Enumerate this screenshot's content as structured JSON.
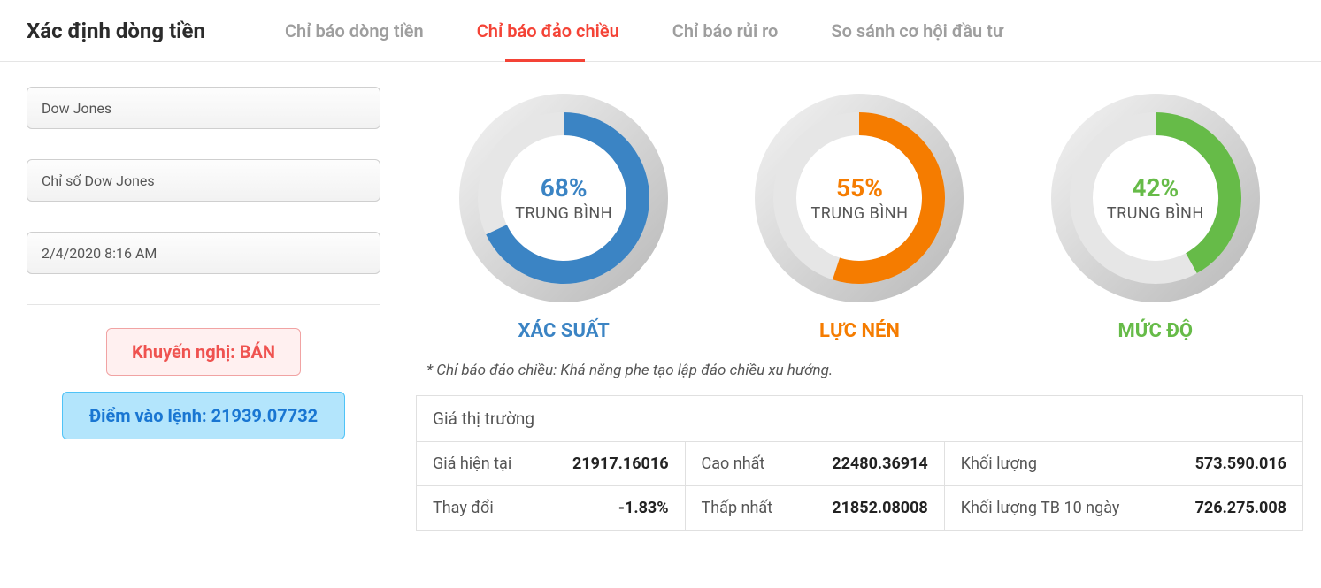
{
  "header": {
    "title": "Xác định dòng tiền",
    "tabs": [
      {
        "label": "Chỉ báo dòng tiền",
        "active": false
      },
      {
        "label": "Chỉ báo đảo chiều",
        "active": true
      },
      {
        "label": "Chỉ báo rủi ro",
        "active": false
      },
      {
        "label": "So sánh cơ hội đầu tư",
        "active": false
      }
    ]
  },
  "sidebar": {
    "symbol_field": "Dow Jones",
    "index_field": "Chỉ số Dow Jones",
    "datetime_field": "2/4/2020 8:16 AM",
    "recommendation_label": "Khuyến nghị: BÁN",
    "entry_label": "Điểm vào lệnh: 21939.07732"
  },
  "gauges": [
    {
      "percent": 68,
      "percent_text": "68%",
      "status": "TRUNG BÌNH",
      "label": "XÁC SUẤT",
      "color": "#3b84c4",
      "track_color": "#e6e6e6"
    },
    {
      "percent": 55,
      "percent_text": "55%",
      "status": "TRUNG BÌNH",
      "label": "LỰC NÉN",
      "color": "#f57c00",
      "track_color": "#e6e6e6"
    },
    {
      "percent": 42,
      "percent_text": "42%",
      "status": "TRUNG BÌNH",
      "label": "MỨC ĐỘ",
      "color": "#66bb48",
      "track_color": "#e6e6e6"
    }
  ],
  "gauge_style": {
    "size": 240,
    "ring_outer_r": 118,
    "ring_inner_r": 96,
    "arc_r": 84,
    "arc_stroke": 26,
    "inner_fill": "#ffffff",
    "bezel_light": "#f4f4f4",
    "bezel_dark": "#b8b8b8"
  },
  "note": "* Chỉ báo đảo chiều: Khả năng phe tạo lập đảo chiều xu hướng.",
  "market": {
    "header": "Giá thị trường",
    "rows": [
      [
        {
          "label": "Giá hiện tại",
          "value": "21917.16016"
        },
        {
          "label": "Cao nhất",
          "value": "22480.36914"
        },
        {
          "label": "Khối lượng",
          "value": "573.590.016"
        }
      ],
      [
        {
          "label": "Thay đổi",
          "value": "-1.83%"
        },
        {
          "label": "Thấp nhất",
          "value": "21852.08008"
        },
        {
          "label": "Khối lượng TB 10 ngày",
          "value": "726.275.008"
        }
      ]
    ]
  },
  "colors": {
    "active_tab": "#f44336",
    "rec_text": "#ef5350",
    "rec_bg": "#fff0f0",
    "entry_text": "#1976d2",
    "entry_bg": "#b3e5fc"
  }
}
